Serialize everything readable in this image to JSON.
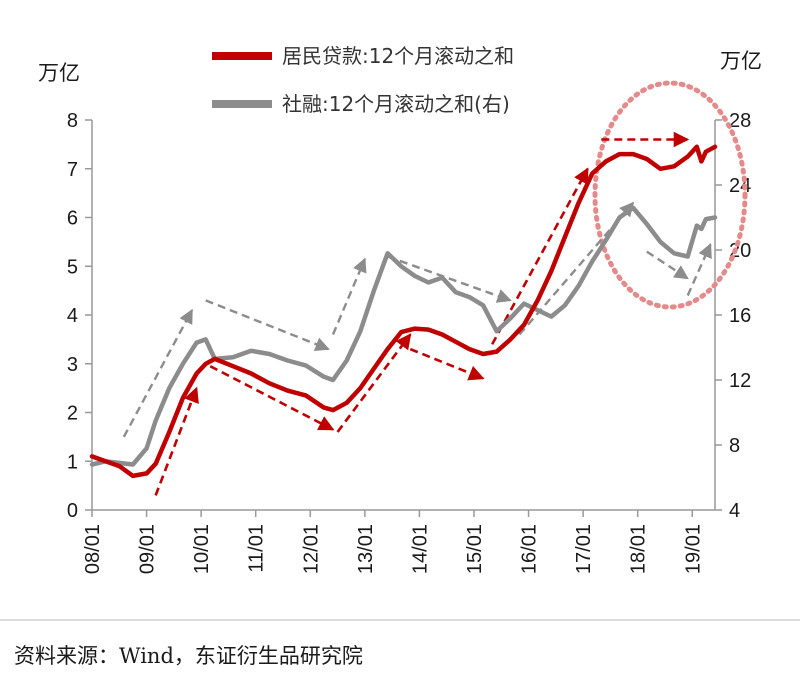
{
  "chart_data": {
    "type": "line",
    "left_unit": "万亿",
    "right_unit": "万亿",
    "left_axis": {
      "ylim": [
        0,
        8
      ],
      "ticks": [
        "0",
        "1",
        "2",
        "3",
        "4",
        "5",
        "6",
        "7",
        "8"
      ]
    },
    "right_axis": {
      "ylim": [
        4,
        28
      ],
      "ticks": [
        "4",
        "8",
        "12",
        "16",
        "20",
        "24",
        "28"
      ]
    },
    "x_ticks": [
      "08/01",
      "09/01",
      "10/01",
      "11/01",
      "12/01",
      "13/01",
      "14/01",
      "15/01",
      "16/01",
      "17/01",
      "18/01",
      "19/01"
    ],
    "x_range": [
      "2008-01",
      "2019-06"
    ],
    "grid": false,
    "legend_position": "top",
    "series": [
      {
        "name": "居民贷款:12个月滚动之和",
        "axis": "left",
        "color": "#c00000",
        "points": [
          [
            "2008-01",
            1.1
          ],
          [
            "2008-04",
            1.0
          ],
          [
            "2008-07",
            0.9
          ],
          [
            "2008-10",
            0.7
          ],
          [
            "2009-01",
            0.75
          ],
          [
            "2009-03",
            0.95
          ],
          [
            "2009-06",
            1.6
          ],
          [
            "2009-09",
            2.3
          ],
          [
            "2009-12",
            2.8
          ],
          [
            "2010-02",
            3.0
          ],
          [
            "2010-04",
            3.1
          ],
          [
            "2010-08",
            2.95
          ],
          [
            "2010-12",
            2.8
          ],
          [
            "2011-04",
            2.6
          ],
          [
            "2011-08",
            2.45
          ],
          [
            "2011-12",
            2.35
          ],
          [
            "2012-04",
            2.1
          ],
          [
            "2012-06",
            2.05
          ],
          [
            "2012-09",
            2.2
          ],
          [
            "2012-12",
            2.5
          ],
          [
            "2013-03",
            2.9
          ],
          [
            "2013-06",
            3.3
          ],
          [
            "2013-09",
            3.65
          ],
          [
            "2013-12",
            3.72
          ],
          [
            "2014-03",
            3.7
          ],
          [
            "2014-06",
            3.6
          ],
          [
            "2014-09",
            3.45
          ],
          [
            "2014-12",
            3.3
          ],
          [
            "2015-03",
            3.2
          ],
          [
            "2015-06",
            3.25
          ],
          [
            "2015-09",
            3.5
          ],
          [
            "2015-12",
            3.8
          ],
          [
            "2016-03",
            4.3
          ],
          [
            "2016-06",
            4.9
          ],
          [
            "2016-09",
            5.6
          ],
          [
            "2016-12",
            6.3
          ],
          [
            "2017-03",
            6.9
          ],
          [
            "2017-06",
            7.15
          ],
          [
            "2017-09",
            7.3
          ],
          [
            "2017-12",
            7.3
          ],
          [
            "2018-03",
            7.2
          ],
          [
            "2018-06",
            7.0
          ],
          [
            "2018-09",
            7.05
          ],
          [
            "2018-12",
            7.25
          ],
          [
            "2019-02",
            7.45
          ],
          [
            "2019-03",
            7.15
          ],
          [
            "2019-04",
            7.35
          ],
          [
            "2019-06",
            7.45
          ]
        ]
      },
      {
        "name": "社融:12个月滚动之和(右)",
        "axis": "right",
        "color": "#8c8c8c",
        "points": [
          [
            "2008-01",
            6.8
          ],
          [
            "2008-04",
            7.0
          ],
          [
            "2008-07",
            6.9
          ],
          [
            "2008-10",
            6.8
          ],
          [
            "2009-01",
            7.8
          ],
          [
            "2009-03",
            9.5
          ],
          [
            "2009-06",
            11.5
          ],
          [
            "2009-09",
            13.0
          ],
          [
            "2009-12",
            14.3
          ],
          [
            "2010-02",
            14.5
          ],
          [
            "2010-04",
            13.3
          ],
          [
            "2010-08",
            13.4
          ],
          [
            "2010-12",
            13.8
          ],
          [
            "2011-04",
            13.6
          ],
          [
            "2011-08",
            13.2
          ],
          [
            "2011-12",
            12.9
          ],
          [
            "2012-04",
            12.2
          ],
          [
            "2012-06",
            12.0
          ],
          [
            "2012-09",
            13.2
          ],
          [
            "2012-12",
            15.0
          ],
          [
            "2013-03",
            17.5
          ],
          [
            "2013-06",
            19.8
          ],
          [
            "2013-09",
            19.0
          ],
          [
            "2013-12",
            18.4
          ],
          [
            "2014-03",
            18.0
          ],
          [
            "2014-06",
            18.3
          ],
          [
            "2014-09",
            17.4
          ],
          [
            "2014-12",
            17.1
          ],
          [
            "2015-03",
            16.6
          ],
          [
            "2015-06",
            15.0
          ],
          [
            "2015-09",
            15.8
          ],
          [
            "2015-12",
            16.7
          ],
          [
            "2016-03",
            16.3
          ],
          [
            "2016-06",
            15.9
          ],
          [
            "2016-09",
            16.6
          ],
          [
            "2016-12",
            17.8
          ],
          [
            "2017-03",
            19.3
          ],
          [
            "2017-06",
            20.6
          ],
          [
            "2017-09",
            22.0
          ],
          [
            "2017-12",
            22.6
          ],
          [
            "2018-03",
            21.6
          ],
          [
            "2018-06",
            20.5
          ],
          [
            "2018-09",
            19.8
          ],
          [
            "2018-12",
            19.6
          ],
          [
            "2019-02",
            21.5
          ],
          [
            "2019-03",
            21.3
          ],
          [
            "2019-04",
            21.9
          ],
          [
            "2019-06",
            22.0
          ]
        ]
      }
    ],
    "trend_arrows": [
      {
        "color": "#c00000",
        "from": [
          "2009-03",
          0.3
        ],
        "to": [
          "2009-12",
          2.5
        ]
      },
      {
        "color": "#c00000",
        "from": [
          "2010-03",
          2.95
        ],
        "to": [
          "2012-06",
          1.65
        ]
      },
      {
        "color": "#c00000",
        "from": [
          "2012-07",
          1.6
        ],
        "to": [
          "2013-11",
          3.6
        ]
      },
      {
        "color": "#c00000",
        "from": [
          "2013-11",
          3.3
        ],
        "to": [
          "2015-03",
          2.7
        ]
      },
      {
        "color": "#c00000",
        "from": [
          "2015-05",
          3.4
        ],
        "to": [
          "2017-02",
          7.0
        ]
      },
      {
        "color": "#c00000",
        "from": [
          "2017-05",
          7.6
        ],
        "to": [
          "2018-12",
          7.6
        ]
      },
      {
        "color": "#8c8c8c",
        "from": [
          "2008-08",
          1.5
        ],
        "to": [
          "2009-11",
          4.1
        ]
      },
      {
        "color": "#8c8c8c",
        "from": [
          "2010-02",
          4.3
        ],
        "to": [
          "2012-05",
          3.3
        ]
      },
      {
        "color": "#8c8c8c",
        "from": [
          "2012-06",
          3.6
        ],
        "to": [
          "2013-01",
          5.15
        ]
      },
      {
        "color": "#8c8c8c",
        "from": [
          "2013-06",
          5.2
        ],
        "to": [
          "2015-09",
          4.3
        ]
      },
      {
        "color": "#8c8c8c",
        "from": [
          "2015-11",
          3.6
        ],
        "to": [
          "2017-12",
          6.3
        ]
      },
      {
        "color": "#8c8c8c",
        "from": [
          "2018-03",
          5.3
        ],
        "to": [
          "2018-12",
          4.75
        ]
      },
      {
        "color": "#8c8c8c",
        "from": [
          "2018-12",
          4.4
        ],
        "to": [
          "2019-05",
          5.45
        ]
      }
    ],
    "highlight": {
      "shape": "dotted-ellipse",
      "color": "#e58a8a",
      "around": "2018-2019"
    }
  },
  "source_note": "资料来源：Wind，东证衍生品研究院"
}
